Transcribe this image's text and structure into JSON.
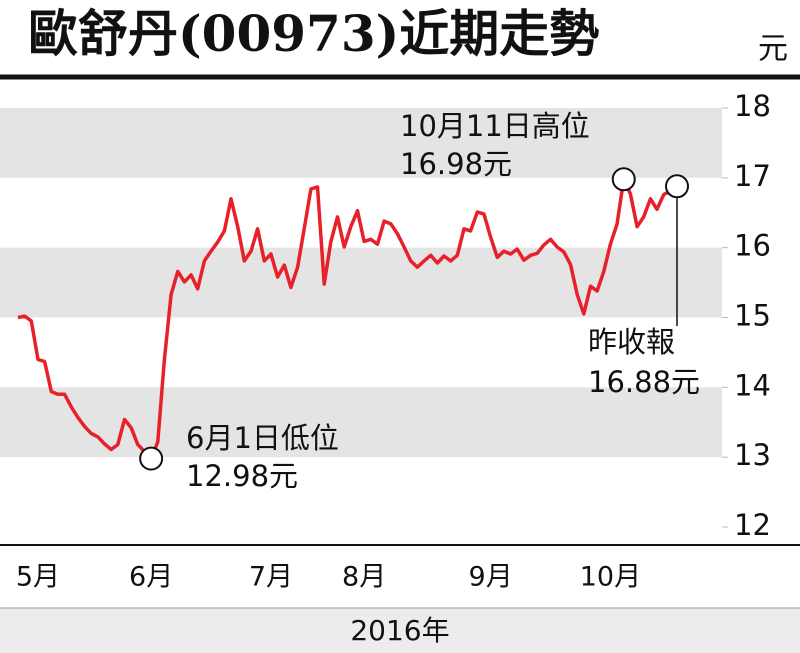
{
  "chart_data": {
    "type": "line",
    "title": "歐舒丹(00973)近期走勢",
    "y_unit": "元",
    "x_label": "2016年",
    "categories": [
      null,
      null,
      null,
      "5月",
      null,
      null,
      null,
      null,
      null,
      null,
      null,
      null,
      null,
      null,
      null,
      null,
      null,
      null,
      null,
      null,
      "6月",
      null,
      null,
      null,
      null,
      null,
      null,
      null,
      null,
      null,
      null,
      null,
      null,
      null,
      null,
      null,
      null,
      null,
      "7月",
      null,
      null,
      null,
      null,
      null,
      null,
      null,
      null,
      null,
      null,
      null,
      null,
      null,
      "8月",
      null,
      null,
      null,
      null,
      null,
      null,
      null,
      null,
      null,
      null,
      null,
      null,
      null,
      null,
      null,
      null,
      null,
      null,
      "9月",
      null,
      null,
      null,
      null,
      null,
      null,
      null,
      null,
      null,
      null,
      null,
      null,
      null,
      null,
      null,
      null,
      null,
      "10月",
      null,
      null,
      null,
      null,
      null,
      null,
      null,
      null,
      null,
      null
    ],
    "series": [
      {
        "color": "#e8202a",
        "values": [
          15.0,
          15.02,
          14.95,
          14.4,
          14.37,
          13.94,
          13.9,
          13.9,
          13.72,
          13.57,
          13.44,
          13.34,
          13.29,
          13.19,
          13.11,
          13.18,
          13.54,
          13.42,
          13.18,
          13.08,
          12.98,
          13.22,
          14.4,
          15.33,
          15.66,
          15.51,
          15.61,
          15.41,
          15.81,
          15.95,
          16.08,
          16.24,
          16.7,
          16.3,
          15.81,
          15.95,
          16.27,
          15.81,
          15.91,
          15.58,
          15.75,
          15.43,
          15.72,
          16.27,
          16.84,
          16.87,
          15.48,
          16.09,
          16.44,
          16.01,
          16.3,
          16.53,
          16.09,
          16.12,
          16.05,
          16.38,
          16.34,
          16.2,
          16.01,
          15.81,
          15.72,
          15.81,
          15.89,
          15.78,
          15.88,
          15.81,
          15.89,
          16.27,
          16.24,
          16.51,
          16.48,
          16.15,
          15.86,
          15.95,
          15.91,
          15.98,
          15.82,
          15.89,
          15.92,
          16.04,
          16.12,
          16.01,
          15.94,
          15.76,
          15.33,
          15.05,
          15.45,
          15.38,
          15.66,
          16.05,
          16.34,
          16.98,
          16.77,
          16.3,
          16.44,
          16.7,
          16.55,
          16.76,
          16.81,
          16.88
        ]
      }
    ],
    "ylim": [
      12,
      18
    ],
    "yticks": [
      12,
      13,
      14,
      15,
      16,
      17,
      18
    ],
    "annotations": [
      {
        "index": 20,
        "lines": [
          "6月1日低位",
          "12.98元"
        ]
      },
      {
        "index": 91,
        "lines": [
          "10月11日高位",
          "16.98元"
        ]
      },
      {
        "index": 99,
        "lines": [
          "昨收報",
          "16.88元"
        ]
      }
    ]
  }
}
